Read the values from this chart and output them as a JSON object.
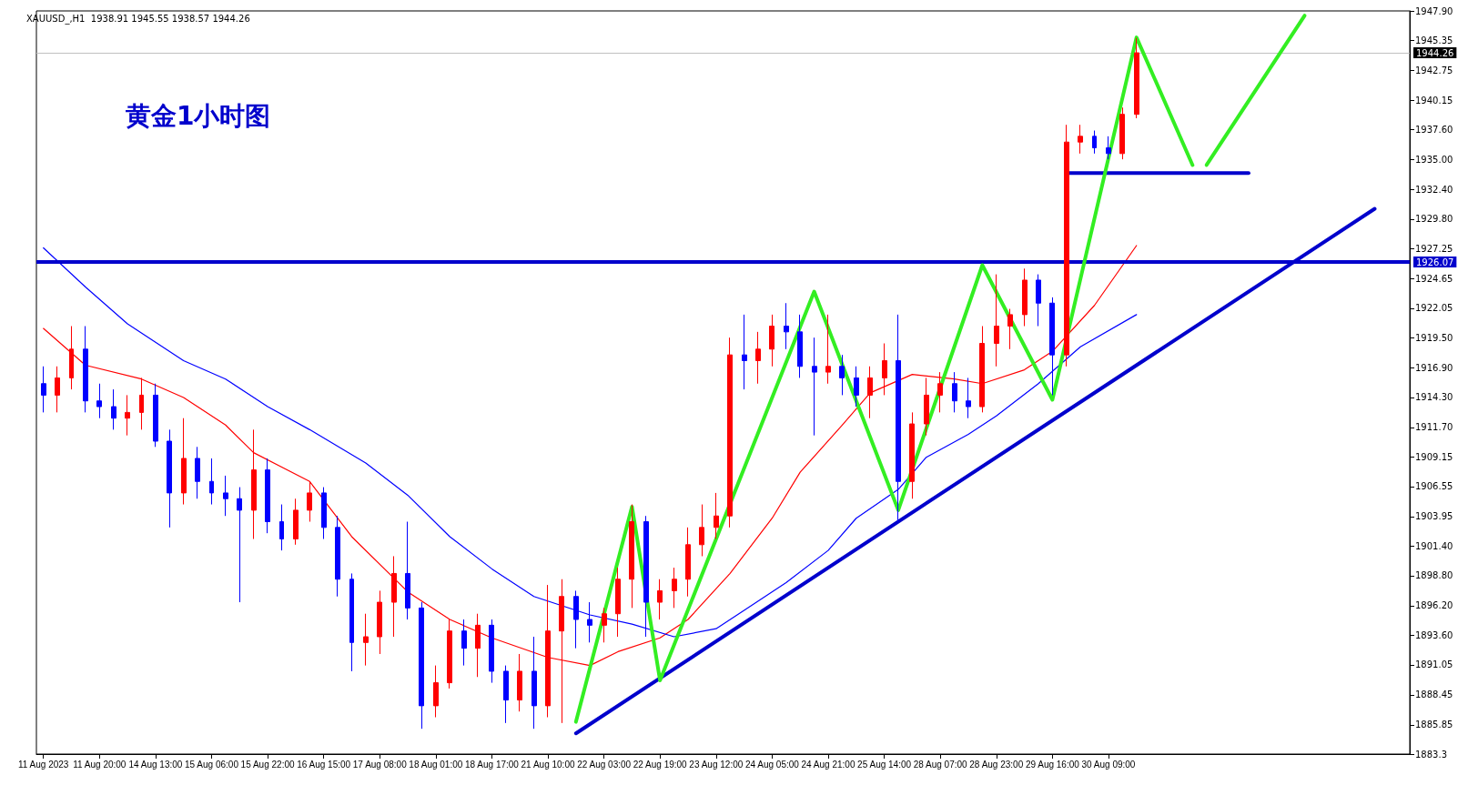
{
  "chart_data": {
    "type": "candlestick",
    "title": "黄金1小时图",
    "subtitle": "XAUUSD_,H1  1938.91 1945.55 1938.57 1944.26",
    "categories": [
      "11 Aug 2023",
      null,
      null,
      null,
      "11 Aug 20:00",
      null,
      null,
      null,
      "14 Aug 13:00",
      null,
      null,
      null,
      "15 Aug 06:00",
      null,
      null,
      null,
      "15 Aug 22:00",
      null,
      null,
      null,
      "16 Aug 15:00",
      null,
      null,
      null,
      "17 Aug 08:00",
      null,
      null,
      null,
      "18 Aug 01:00",
      null,
      null,
      null,
      "18 Aug 17:00",
      null,
      null,
      null,
      "21 Aug 10:00",
      null,
      null,
      null,
      "22 Aug 03:00",
      null,
      null,
      null,
      "22 Aug 19:00",
      null,
      null,
      null,
      "23 Aug 12:00",
      null,
      null,
      null,
      "24 Aug 05:00",
      null,
      null,
      null,
      "24 Aug 21:00",
      null,
      null,
      null,
      "25 Aug 14:00",
      null,
      null,
      null,
      "28 Aug 07:00",
      null,
      null,
      null,
      "28 Aug 23:00",
      null,
      null,
      null,
      "29 Aug 16:00",
      null,
      null,
      null,
      "30 Aug 09:00",
      null,
      null,
      null,
      null,
      null,
      null,
      null,
      null,
      null,
      null,
      null,
      null,
      null,
      null,
      null,
      null,
      null,
      null,
      null,
      null,
      null
    ],
    "ylim": [
      1883.3,
      1947.9
    ],
    "yticks": [
      1883.3,
      1885.85,
      1888.45,
      1891.05,
      {
        "value": 1893.6,
        "label": "1893.60"
      },
      {
        "value": 1896.2,
        "label": "1896.20"
      },
      {
        "value": 1898.8,
        "label": "1898.80"
      },
      {
        "value": 1901.4,
        "label": "1901.40"
      },
      1903.95,
      1906.55,
      1909.15,
      {
        "value": 1911.7,
        "label": "1911.70"
      },
      {
        "value": 1914.3,
        "label": "1914.30"
      },
      {
        "value": 1916.9,
        "label": "1916.90"
      },
      {
        "value": 1919.5,
        "label": "1919.50"
      },
      1922.05,
      1924.65,
      1927.25,
      {
        "value": 1929.8,
        "label": "1929.80"
      },
      {
        "value": 1932.4,
        "label": "1932.40"
      },
      {
        "value": 1935,
        "label": "1935.00"
      },
      {
        "value": 1937.6,
        "label": "1937.60"
      },
      1940.15,
      1942.75,
      1945.35,
      {
        "value": 1947.9,
        "label": "1947.90"
      }
    ],
    "marker": "none",
    "series": [
      {
        "type": "candlestick",
        "ohlc": [
          [
            1915.5,
            1917,
            1913,
            1914.5
          ],
          [
            1914.5,
            1917,
            1913,
            1916
          ],
          [
            1916,
            1920.5,
            1915,
            1918.5
          ],
          [
            1918.5,
            1920.5,
            1913,
            1914
          ],
          [
            1914,
            1915.5,
            1912.5,
            1913.5
          ],
          [
            1913.5,
            1915,
            1911.5,
            1912.5
          ],
          [
            1912.5,
            1914.5,
            1911,
            1913
          ],
          [
            1913,
            1916,
            1911.5,
            1914.5
          ],
          [
            1914.5,
            1915.5,
            1910,
            1910.5
          ],
          [
            1910.5,
            1911.5,
            1903,
            1906
          ],
          [
            1906,
            1912.5,
            1905,
            1909
          ],
          [
            1909,
            1910,
            1905.5,
            1907
          ],
          [
            1907,
            1909,
            1905,
            1906
          ],
          [
            1906,
            1907.5,
            1904,
            1905.5
          ],
          [
            1905.5,
            1906.5,
            1896.5,
            1904.5
          ],
          [
            1904.5,
            1911.5,
            1902,
            1908
          ],
          [
            1908,
            1909,
            1902.5,
            1903.5
          ],
          [
            1903.5,
            1905,
            1901,
            1902
          ],
          [
            1902,
            1905.5,
            1901.5,
            1904.5
          ],
          [
            1904.5,
            1907,
            1903.5,
            1906
          ],
          [
            1906,
            1906.5,
            1902,
            1903
          ],
          [
            1903,
            1904,
            1897,
            1898.5
          ],
          [
            1898.5,
            1899,
            1890.5,
            1893
          ],
          [
            1893,
            1895.5,
            1891,
            1893.5
          ],
          [
            1893.5,
            1897.5,
            1892,
            1896.5
          ],
          [
            1896.5,
            1900.5,
            1893.5,
            1899
          ],
          [
            1899,
            1903.5,
            1895,
            1896
          ],
          [
            1896,
            1896.5,
            1885.5,
            1887.5
          ],
          [
            1887.5,
            1891,
            1886.5,
            1889.5
          ],
          [
            1889.5,
            1895,
            1889,
            1894
          ],
          [
            1894,
            1895,
            1891,
            1892.5
          ],
          [
            1892.5,
            1895.5,
            1890,
            1894.5
          ],
          [
            1894.5,
            1895,
            1889.5,
            1890.5
          ],
          [
            1890.5,
            1891,
            1886,
            1888
          ],
          [
            1888,
            1892,
            1887,
            1890.5
          ],
          [
            1890.5,
            1893.5,
            1885.5,
            1887.5
          ],
          [
            1887.5,
            1898,
            1886.5,
            1894
          ],
          [
            1894,
            1898.5,
            1886,
            1897
          ],
          [
            1897,
            1897.5,
            1892.5,
            1895
          ],
          [
            1895,
            1896.5,
            1893,
            1894.5
          ],
          [
            1894.5,
            1896,
            1893,
            1895.5
          ],
          [
            1895.5,
            1899.5,
            1893.5,
            1898.5
          ],
          [
            1898.5,
            1905,
            1896,
            1903.5
          ],
          [
            1903.5,
            1904,
            1893.5,
            1896.5
          ],
          [
            1896.5,
            1898.5,
            1895,
            1897.5
          ],
          [
            1897.5,
            1899.5,
            1896,
            1898.5
          ],
          [
            1898.5,
            1903,
            1897,
            1901.5
          ],
          [
            1901.5,
            1905,
            1900.5,
            1903
          ],
          [
            1903,
            1906,
            1902,
            1904
          ],
          [
            1904,
            1919.5,
            1903,
            1918
          ],
          [
            1918,
            1921.5,
            1915,
            1917.5
          ],
          [
            1917.5,
            1920,
            1915.5,
            1918.5
          ],
          [
            1918.5,
            1921.5,
            1917,
            1920.5
          ],
          [
            1920.5,
            1922.5,
            1918.5,
            1920
          ],
          [
            1920,
            1921.5,
            1916,
            1917
          ],
          [
            1917,
            1919.5,
            1911,
            1916.5
          ],
          [
            1916.5,
            1921.5,
            1915.5,
            1917
          ],
          [
            1917,
            1918,
            1914.5,
            1916
          ],
          [
            1916,
            1917,
            1913.5,
            1914.5
          ],
          [
            1914.5,
            1917,
            1912.5,
            1916
          ],
          [
            1916,
            1919,
            1914.5,
            1917.5
          ],
          [
            1917.5,
            1921.5,
            1903.5,
            1907
          ],
          [
            1907,
            1913,
            1905.5,
            1912
          ],
          [
            1912,
            1916,
            1911,
            1914.5
          ],
          [
            1914.5,
            1916.5,
            1913,
            1915.5
          ],
          [
            1915.5,
            1916.5,
            1913,
            1914
          ],
          [
            1914,
            1916,
            1912.5,
            1913.5
          ],
          [
            1913.5,
            1920.5,
            1913,
            1919
          ],
          [
            1919,
            1925,
            1917,
            1920.5
          ],
          [
            1920.5,
            1922,
            1918.5,
            1921.5
          ],
          [
            1921.5,
            1925.5,
            1920.5,
            1924.5
          ],
          [
            1924.5,
            1925,
            1920.5,
            1922.5
          ],
          [
            1922.5,
            1923,
            1914.5,
            1918
          ],
          [
            1918,
            1938,
            1917,
            1936.5
          ],
          [
            1936.5,
            1938,
            1935.5,
            1937
          ],
          [
            1937,
            1937.5,
            1935.5,
            1936
          ],
          [
            1936,
            1937,
            1935,
            1935.5
          ],
          [
            1935.5,
            1939.5,
            1935,
            1938.91
          ],
          [
            1938.91,
            1945.55,
            1938.57,
            1944.26
          ],
          null,
          null,
          null,
          null,
          null,
          null,
          null,
          null,
          null,
          null,
          null,
          null,
          null,
          null,
          null,
          null,
          null,
          null,
          null
        ],
        "colors": [
          "#0000ff",
          "#ff0000",
          "#ff0000",
          "#0000ff",
          "#0000ff",
          "#0000ff",
          "#ff0000",
          "#ff0000",
          "#0000ff",
          "#0000ff",
          "#ff0000",
          "#0000ff",
          "#0000ff",
          "#0000ff",
          "#0000ff",
          "#ff0000",
          "#0000ff",
          "#0000ff",
          "#ff0000",
          "#ff0000",
          "#0000ff",
          "#0000ff",
          "#0000ff",
          "#ff0000",
          "#ff0000",
          "#ff0000",
          "#0000ff",
          "#0000ff",
          "#ff0000",
          "#ff0000",
          "#0000ff",
          "#ff0000",
          "#0000ff",
          "#0000ff",
          "#ff0000",
          "#0000ff",
          "#ff0000",
          "#ff0000",
          "#0000ff",
          "#0000ff",
          "#ff0000",
          "#ff0000",
          "#ff0000",
          "#0000ff",
          "#ff0000",
          "#ff0000",
          "#ff0000",
          "#ff0000",
          "#ff0000",
          "#ff0000",
          "#0000ff",
          "#ff0000",
          "#ff0000",
          "#0000ff",
          "#0000ff",
          "#0000ff",
          "#ff0000",
          "#0000ff",
          "#0000ff",
          "#ff0000",
          "#ff0000",
          "#0000ff",
          "#ff0000",
          "#ff0000",
          "#ff0000",
          "#0000ff",
          "#0000ff",
          "#ff0000",
          "#ff0000",
          "#ff0000",
          "#ff0000",
          "#0000ff",
          "#0000ff",
          "#ff0000",
          "#ff0000",
          "#0000ff",
          "#0000ff",
          "#ff0000",
          "#ff0000",
          null,
          null,
          null,
          null,
          null,
          null,
          null,
          null,
          null,
          null,
          null,
          null,
          null,
          null,
          null,
          null,
          null,
          null,
          null
        ]
      },
      {
        "type": "line",
        "color": "#ff0000",
        "values": [
          1920.3,
          null,
          null,
          1917.1,
          null,
          null,
          null,
          1915.9,
          null,
          null,
          1914.3,
          null,
          null,
          1911.9,
          null,
          1909.5,
          null,
          null,
          null,
          1907.0,
          null,
          null,
          1902.2,
          null,
          null,
          null,
          1897.4,
          null,
          null,
          1895.0,
          null,
          null,
          1893.4,
          null,
          null,
          null,
          1891.7,
          null,
          null,
          1891.0,
          null,
          1892.2,
          null,
          null,
          1893.4,
          null,
          1895.0,
          null,
          null,
          1899.0,
          null,
          null,
          1903.8,
          null,
          1907.8,
          null,
          null,
          1911.9,
          null,
          1914.7,
          null,
          null,
          1916.3,
          null,
          null,
          1915.9,
          null,
          1915.5,
          null,
          null,
          1916.7,
          null,
          1918.3,
          null,
          null,
          1922.3,
          null,
          null,
          1927.5,
          null,
          null,
          null,
          null,
          null,
          null,
          null,
          null,
          null,
          null,
          null,
          null,
          null,
          null,
          null,
          null,
          null,
          null,
          null
        ]
      },
      {
        "type": "line",
        "color": "#0000ff",
        "values": [
          1927.3,
          null,
          null,
          1923.9,
          null,
          null,
          1920.7,
          null,
          null,
          null,
          1917.5,
          null,
          null,
          1915.9,
          null,
          null,
          1913.5,
          null,
          null,
          1911.5,
          null,
          null,
          null,
          1908.6,
          null,
          null,
          1905.8,
          null,
          null,
          1902.2,
          null,
          null,
          1899.4,
          null,
          null,
          1897.0,
          null,
          null,
          null,
          1895.4,
          null,
          null,
          1894.6,
          null,
          null,
          1893.5,
          null,
          null,
          1894.2,
          null,
          1895.8,
          null,
          null,
          1898.2,
          null,
          null,
          1901.0,
          null,
          1903.8,
          null,
          null,
          1906.3,
          null,
          1909.1,
          null,
          null,
          1911.1,
          null,
          1912.7,
          null,
          null,
          1915.5,
          null,
          null,
          1918.7,
          null,
          null,
          null,
          1921.5,
          null,
          null,
          null,
          null,
          null,
          null,
          null,
          null,
          null,
          null,
          null,
          null,
          null,
          null,
          null,
          null,
          null,
          null,
          null
        ]
      },
      {
        "type": "line",
        "color": "#0000cc",
        "values": [
          null,
          null,
          null,
          null,
          null,
          null,
          null,
          null,
          null,
          null,
          null,
          null,
          null,
          null,
          null,
          null,
          null,
          null,
          null,
          null,
          null,
          null,
          null,
          null,
          null,
          null,
          null,
          null,
          null,
          null,
          null,
          null,
          null,
          null,
          null,
          null,
          null,
          null,
          1885.1,
          null,
          null,
          null,
          null,
          null,
          null,
          null,
          null,
          null,
          null,
          null,
          null,
          null,
          null,
          null,
          null,
          null,
          null,
          null,
          null,
          null,
          null,
          null,
          null,
          null,
          null,
          null,
          null,
          null,
          null,
          null,
          null,
          null,
          null,
          null,
          null,
          null,
          null,
          null,
          null,
          null,
          null,
          null,
          null,
          null,
          null,
          null,
          null,
          null,
          null,
          null,
          null,
          null,
          null,
          null,
          null,
          1930.7,
          null,
          null
        ]
      },
      {
        "type": "line",
        "color": "#0000cc",
        "values": [
          null,
          null,
          null,
          null,
          null,
          null,
          null,
          null,
          null,
          null,
          null,
          null,
          null,
          null,
          null,
          null,
          null,
          null,
          null,
          null,
          null,
          null,
          null,
          null,
          null,
          null,
          null,
          null,
          null,
          null,
          null,
          null,
          null,
          null,
          null,
          null,
          null,
          null,
          null,
          null,
          null,
          null,
          null,
          null,
          null,
          null,
          null,
          null,
          null,
          null,
          null,
          null,
          null,
          null,
          null,
          null,
          null,
          null,
          null,
          null,
          null,
          null,
          null,
          null,
          null,
          null,
          null,
          null,
          null,
          null,
          null,
          null,
          null,
          1933.8,
          null,
          null,
          null,
          null,
          null,
          null,
          null,
          null,
          null,
          null,
          null,
          null,
          1933.8,
          null,
          null,
          null,
          null,
          null,
          null,
          null,
          null,
          null,
          null,
          null
        ]
      },
      {
        "type": "line",
        "color": "#33ee22",
        "values": [
          null,
          null,
          null,
          null,
          null,
          null,
          null,
          null,
          null,
          null,
          null,
          null,
          null,
          null,
          null,
          null,
          null,
          null,
          null,
          null,
          null,
          null,
          null,
          null,
          null,
          null,
          null,
          null,
          null,
          null,
          null,
          null,
          null,
          null,
          null,
          null,
          null,
          null,
          1886.1,
          null,
          null,
          null,
          1904.8,
          null,
          1889.7,
          null,
          null,
          null,
          null,
          null,
          null,
          null,
          null,
          null,
          null,
          1923.5,
          null,
          null,
          null,
          null,
          null,
          1904.5,
          null,
          null,
          null,
          null,
          null,
          1925.8,
          null,
          null,
          null,
          null,
          1914.1,
          null,
          null,
          null,
          null,
          null,
          1945.6,
          null,
          null,
          null,
          1934.5,
          null,
          null,
          null,
          null,
          null,
          null,
          null,
          null,
          null,
          null,
          null,
          null,
          null,
          null,
          null
        ]
      },
      {
        "type": "line",
        "color": "#33ee22",
        "values": [
          null,
          null,
          null,
          null,
          null,
          null,
          null,
          null,
          null,
          null,
          null,
          null,
          null,
          null,
          null,
          null,
          null,
          null,
          null,
          null,
          null,
          null,
          null,
          null,
          null,
          null,
          null,
          null,
          null,
          null,
          null,
          null,
          null,
          null,
          null,
          null,
          null,
          null,
          null,
          null,
          null,
          null,
          null,
          null,
          null,
          null,
          null,
          null,
          null,
          null,
          null,
          null,
          null,
          null,
          null,
          null,
          null,
          null,
          null,
          null,
          null,
          null,
          null,
          null,
          null,
          null,
          null,
          null,
          null,
          null,
          null,
          null,
          null,
          null,
          null,
          null,
          null,
          null,
          null,
          null,
          null,
          null,
          null,
          1934.5,
          null,
          null,
          null,
          null,
          null,
          null,
          1947.5,
          null,
          null,
          null,
          null,
          null,
          null,
          null
        ]
      }
    ],
    "ref_lines": [
      {
        "axis": "y",
        "value": 1926.07,
        "label": "1926.07",
        "color": "#0000cc"
      },
      {
        "axis": "y",
        "value": 1944.26,
        "label": "1944.26",
        "color": "#c0c0c0"
      }
    ]
  }
}
